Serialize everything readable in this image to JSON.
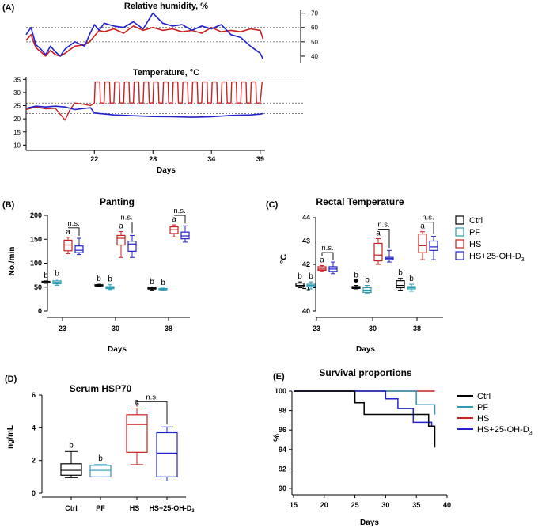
{
  "colors": {
    "ctrl": "#000000",
    "pf": "#2a9bb3",
    "hs": "#cc1f1f",
    "hsd": "#2222cc",
    "grid": "#555555"
  },
  "panels": {
    "A": "(A)",
    "B": "(B)",
    "C": "(C)",
    "D": "(D)",
    "E": "(E)"
  },
  "legend": {
    "ctrl": "Ctrl",
    "pf": "PF",
    "hs": "HS",
    "hsd_base": "HS+25-OH-D",
    "hsd_sub": "3"
  },
  "chart_data": [
    {
      "id": "A-top",
      "type": "line",
      "title": "Relative humidity, %",
      "ylim": [
        35,
        72
      ],
      "yticks": [
        40,
        50,
        60,
        70
      ],
      "reference_lines": [
        50,
        60
      ],
      "xlim": [
        15,
        39.5
      ],
      "series": [
        {
          "name": "HS",
          "color": "hs",
          "x": [
            15,
            15.5,
            16,
            16.5,
            17,
            17.5,
            18,
            18.5,
            19,
            20,
            21,
            21.5,
            22,
            22.5,
            23,
            24,
            25,
            26,
            27,
            28,
            29,
            30,
            31,
            32,
            33,
            34,
            35,
            36,
            37,
            38,
            39,
            39.3
          ],
          "y": [
            51,
            55,
            46,
            43,
            40,
            44,
            41,
            40,
            42,
            47,
            48,
            50,
            54,
            58,
            57,
            59,
            56,
            61,
            58,
            60,
            58,
            59,
            57,
            58,
            56,
            60,
            57,
            58,
            57,
            59,
            58,
            52
          ]
        },
        {
          "name": "HS+25-OH-D3",
          "color": "hsd",
          "x": [
            15,
            15.5,
            16,
            16.5,
            17,
            17.5,
            18,
            18.5,
            19,
            20,
            21,
            21.5,
            22,
            22.5,
            23,
            24,
            25,
            26,
            27,
            28,
            29,
            30,
            31,
            32,
            33,
            34,
            35,
            36,
            37,
            38,
            39,
            39.3
          ],
          "y": [
            55,
            60,
            48,
            45,
            41,
            47,
            43,
            40,
            45,
            50,
            47,
            55,
            62,
            58,
            63,
            61,
            60,
            64,
            59,
            70,
            63,
            61,
            62,
            58,
            61,
            59,
            62,
            55,
            53,
            47,
            42,
            38
          ]
        }
      ]
    },
    {
      "id": "A-bottom",
      "type": "line",
      "title": "Temperature, °C",
      "xlabel": "Days",
      "ylim": [
        8,
        36
      ],
      "yticks": [
        10,
        15,
        20,
        25,
        30,
        35
      ],
      "xticks": [
        22,
        28,
        34,
        39
      ],
      "xlim": [
        15,
        39.5
      ],
      "reference_lines": [
        22,
        26,
        34
      ],
      "series": [
        {
          "name": "HS",
          "color": "hs",
          "x": [
            15,
            16,
            17,
            18,
            19,
            19.5,
            20,
            21,
            21.6
          ],
          "y": [
            23.5,
            24.5,
            23.8,
            24,
            19.5,
            23.5,
            26,
            25.5,
            25
          ]
        },
        {
          "name": "HS+25-OH-D3",
          "color": "hsd",
          "x": [
            15,
            16,
            17,
            18,
            19,
            20,
            21,
            21.6,
            22,
            24,
            26,
            28,
            30,
            32,
            34,
            36,
            38,
            39,
            39.3
          ],
          "y": [
            24,
            24.8,
            24.5,
            24.8,
            24.5,
            23.5,
            24,
            24.2,
            22.2,
            21.5,
            21.2,
            20.9,
            20.8,
            20.6,
            20.8,
            21.3,
            21.5,
            21.8,
            22
          ]
        }
      ],
      "hs_cycle": {
        "start_day": 22,
        "end_day": 39,
        "low": 26,
        "high": 34,
        "note": "daily cycling between ~26 and ~34 °C"
      }
    },
    {
      "id": "B",
      "type": "box",
      "title": "Panting",
      "ylabel": "No./min",
      "xlabel": "Days",
      "ylim": [
        0,
        200
      ],
      "yticks": [
        0,
        50,
        100,
        150,
        200
      ],
      "categories": [
        "23",
        "30",
        "38"
      ],
      "groups": [
        {
          "name": "Ctrl",
          "color": "ctrl",
          "boxes": [
            [
              58,
              59,
              60,
              62,
              63
            ],
            [
              52,
              53,
              54,
              55,
              56
            ],
            [
              44,
              46,
              47,
              49,
              50
            ]
          ],
          "labels": [
            "b",
            "b",
            "b"
          ]
        },
        {
          "name": "PF",
          "color": "pf",
          "boxes": [
            [
              54,
              57,
              60,
              63,
              67
            ],
            [
              45,
              47,
              49,
              51,
              55
            ],
            [
              44,
              45,
              46,
              47,
              48
            ]
          ],
          "labels": [
            "b",
            "b",
            "b"
          ]
        },
        {
          "name": "HS",
          "color": "hs",
          "boxes": [
            [
              120,
              126,
              138,
              148,
              154
            ],
            [
              112,
              138,
              152,
              158,
              166
            ],
            [
              155,
              162,
              170,
              176,
              180
            ]
          ],
          "labels": [
            "a",
            "a",
            "a"
          ]
        },
        {
          "name": "HS+25-OH-D3",
          "color": "hsd",
          "boxes": [
            [
              118,
              122,
              127,
              136,
              152
            ],
            [
              112,
              125,
              140,
              146,
              158
            ],
            [
              144,
              151,
              157,
              165,
              178
            ]
          ],
          "labels": [
            "",
            "",
            ""
          ]
        }
      ],
      "annotations": [
        "n.s.",
        "n.s.",
        "n.s."
      ]
    },
    {
      "id": "C",
      "type": "box",
      "title": "Rectal Temperature",
      "ylabel": "°C",
      "xlabel": "Days",
      "ylim": [
        40,
        44
      ],
      "yticks": [
        40,
        41,
        42,
        43,
        44
      ],
      "categories": [
        "23",
        "30",
        "38"
      ],
      "groups": [
        {
          "name": "Ctrl",
          "color": "ctrl",
          "boxes": [
            [
              41.0,
              41.05,
              41.1,
              41.2,
              41.25
            ],
            [
              40.95,
              40.97,
              41.0,
              41.05,
              41.1
            ],
            [
              40.9,
              41.0,
              41.1,
              41.3,
              41.4
            ]
          ],
          "labels": [
            "b",
            "b",
            "b"
          ],
          "outliers": [
            [],
            [
              41.3
            ],
            []
          ]
        },
        {
          "name": "PF",
          "color": "pf",
          "boxes": [
            [
              40.95,
              41.05,
              41.1,
              41.15,
              41.25
            ],
            [
              40.75,
              40.8,
              40.9,
              41.0,
              41.1
            ],
            [
              40.85,
              40.95,
              41.0,
              41.05,
              41.15
            ]
          ],
          "labels": [
            "b",
            "b",
            "b"
          ]
        },
        {
          "name": "HS",
          "color": "hs",
          "boxes": [
            [
              41.7,
              41.75,
              41.8,
              41.9,
              41.95
            ],
            [
              42.0,
              42.15,
              42.4,
              42.9,
              43.1
            ],
            [
              42.2,
              42.5,
              42.8,
              43.3,
              43.4
            ]
          ],
          "labels": [
            "a",
            "a",
            "a"
          ]
        },
        {
          "name": "HS+25-OH-D3",
          "color": "hsd",
          "boxes": [
            [
              41.6,
              41.7,
              41.8,
              41.9,
              42.1
            ],
            [
              42.1,
              42.2,
              42.25,
              42.3,
              42.6
            ],
            [
              42.2,
              42.6,
              42.75,
              43.0,
              43.2
            ]
          ],
          "labels": [
            "",
            "",
            ""
          ]
        }
      ],
      "annotations": [
        "n.s.",
        "n.s.",
        "n.s."
      ]
    },
    {
      "id": "D",
      "type": "box",
      "title": "Serum HSP70",
      "ylabel": "ng/mL",
      "ylim": [
        0,
        6
      ],
      "yticks": [
        0,
        2,
        4,
        6
      ],
      "categories": [
        "Ctrl",
        "PF",
        "HS",
        "HS+25-OH-D3"
      ],
      "boxes": [
        {
          "name": "Ctrl",
          "color": "ctrl",
          "stats": [
            0.95,
            1.1,
            1.4,
            1.8,
            2.55
          ],
          "label": "b"
        },
        {
          "name": "PF",
          "color": "pf",
          "stats": [
            1.0,
            1.0,
            1.4,
            1.7,
            1.75
          ],
          "label": "b"
        },
        {
          "name": "HS",
          "color": "hs",
          "stats": [
            1.75,
            2.5,
            4.2,
            4.8,
            5.2
          ],
          "label": "a"
        },
        {
          "name": "HS+25-OH-D3",
          "color": "hsd",
          "stats": [
            0.75,
            1.0,
            2.45,
            3.7,
            4.05
          ],
          "label": ""
        }
      ],
      "annotations": [
        "n.s."
      ]
    },
    {
      "id": "E",
      "type": "step",
      "title": "Survival proportions",
      "ylabel": "%",
      "xlabel": "Days",
      "xlim": [
        15,
        40
      ],
      "xticks": [
        15,
        20,
        25,
        30,
        35,
        40
      ],
      "ylim": [
        90,
        100
      ],
      "yticks": [
        90,
        92,
        94,
        96,
        98,
        100
      ],
      "series": [
        {
          "name": "Ctrl",
          "color": "ctrl",
          "x": [
            15,
            25,
            25,
            26.5,
            26.5,
            35.5,
            35.5,
            37,
            37,
            38,
            38
          ],
          "y": [
            100,
            100,
            98.8,
            98.8,
            97.6,
            97.6,
            97.6,
            97.6,
            96.4,
            96.4,
            94.2
          ]
        },
        {
          "name": "PF",
          "color": "pf",
          "x": [
            15,
            35,
            35,
            38,
            38
          ],
          "y": [
            100,
            100,
            98.6,
            98.6,
            97.6
          ]
        },
        {
          "name": "HS",
          "color": "hs",
          "x": [
            15,
            38
          ],
          "y": [
            100,
            100
          ]
        },
        {
          "name": "HS+25-OH-D3",
          "color": "hsd",
          "x": [
            15,
            30,
            30,
            32,
            32,
            34.5,
            34.5,
            37.5,
            37.5,
            38
          ],
          "y": [
            100,
            100,
            99.2,
            99.2,
            98.2,
            98.2,
            96.8,
            96.8,
            96.4,
            96.4
          ]
        }
      ]
    }
  ]
}
